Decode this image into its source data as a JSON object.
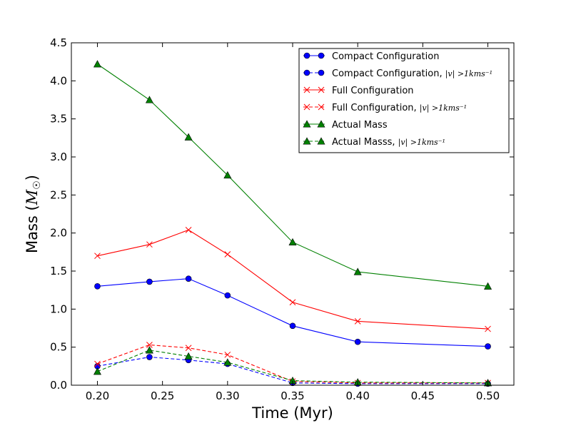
{
  "chart_data": {
    "type": "line",
    "title": "",
    "xlabel": "Time (Myr)",
    "ylabel_text": "Mass (",
    "ylabel_math": "M",
    "ylabel_sub": "☉",
    "ylabel_close": ")",
    "xlim": [
      0.18,
      0.52
    ],
    "ylim": [
      0.0,
      4.5
    ],
    "x_ticks": [
      "0.20",
      "0.25",
      "0.30",
      "0.35",
      "0.40",
      "0.45",
      "0.50"
    ],
    "y_ticks": [
      "0.0",
      "0.5",
      "1.0",
      "1.5",
      "2.0",
      "2.5",
      "3.0",
      "3.5",
      "4.0",
      "4.5"
    ],
    "x": [
      0.2,
      0.24,
      0.27,
      0.3,
      0.35,
      0.4,
      0.5
    ],
    "legend_position": "top-right",
    "series": [
      {
        "name": "Compact Configuration",
        "name_math": "",
        "color": "#0000ff",
        "marker": "circle",
        "dashed": false,
        "values": [
          1.3,
          1.36,
          1.4,
          1.18,
          0.78,
          0.57,
          0.51
        ]
      },
      {
        "name": "Compact Configuration, ",
        "name_math": "|v| >1kms⁻¹",
        "color": "#0000ff",
        "marker": "circle",
        "dashed": true,
        "values": [
          0.25,
          0.37,
          0.33,
          0.28,
          0.03,
          0.02,
          0.02
        ]
      },
      {
        "name": "Full Configuration",
        "name_math": "",
        "color": "#ff0000",
        "marker": "x",
        "dashed": false,
        "values": [
          1.7,
          1.85,
          2.04,
          1.72,
          1.09,
          0.84,
          0.74
        ]
      },
      {
        "name": "Full Configuration, ",
        "name_math": "|v| >1kms⁻¹",
        "color": "#ff0000",
        "marker": "x",
        "dashed": true,
        "values": [
          0.28,
          0.53,
          0.49,
          0.4,
          0.05,
          0.03,
          0.03
        ]
      },
      {
        "name": "Actual Mass",
        "name_math": "",
        "color": "#008000",
        "marker": "triangle",
        "dashed": false,
        "values": [
          4.22,
          3.75,
          3.26,
          2.76,
          1.88,
          1.49,
          1.3
        ]
      },
      {
        "name": "Actual Masss, ",
        "name_math": "|v| >1kms⁻¹",
        "color": "#008000",
        "marker": "triangle",
        "dashed": true,
        "values": [
          0.18,
          0.46,
          0.38,
          0.3,
          0.06,
          0.04,
          0.03
        ]
      }
    ]
  }
}
